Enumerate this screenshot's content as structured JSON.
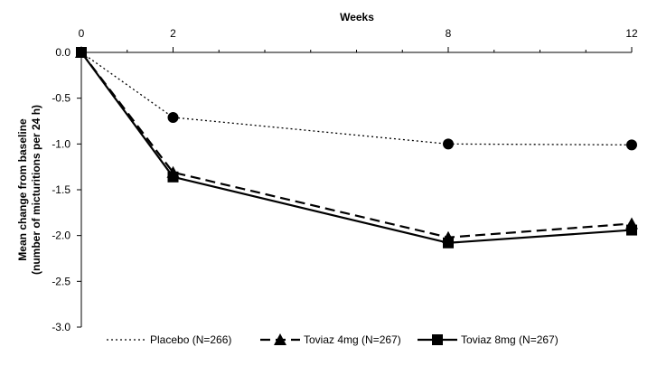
{
  "chart_data": {
    "type": "line",
    "title": "",
    "xlabel": "Weeks",
    "ylabel_line1": "Mean change from baseline",
    "ylabel_line2": "(number of micturitions per 24 h)",
    "x": [
      0,
      2,
      8,
      12
    ],
    "x_tick_labels": [
      "0",
      "2",
      "8",
      "12"
    ],
    "xlim": [
      0,
      12
    ],
    "ylim": [
      -3.0,
      0.0
    ],
    "y_ticks": [
      0.0,
      -0.5,
      -1.0,
      -1.5,
      -2.0,
      -2.5,
      -3.0
    ],
    "y_tick_labels": [
      "0.0",
      "-0.5",
      "-1.0",
      "-1.5",
      "-2.0",
      "-2.5",
      "-3.0"
    ],
    "grid": false,
    "legend_position": "bottom",
    "series": [
      {
        "name": "Placebo (N=266)",
        "style": "dotted",
        "marker": "circle",
        "values": [
          0.0,
          -0.71,
          -1.0,
          -1.01
        ]
      },
      {
        "name": "Toviaz 4mg (N=267)",
        "style": "dashed",
        "marker": "triangle",
        "values": [
          0.0,
          -1.31,
          -2.02,
          -1.87
        ]
      },
      {
        "name": "Toviaz 8mg (N=267)",
        "style": "solid",
        "marker": "square",
        "values": [
          0.0,
          -1.36,
          -2.08,
          -1.94
        ]
      }
    ]
  },
  "colors": {
    "line": "#000000",
    "axis": "#000000",
    "background": "#ffffff"
  }
}
